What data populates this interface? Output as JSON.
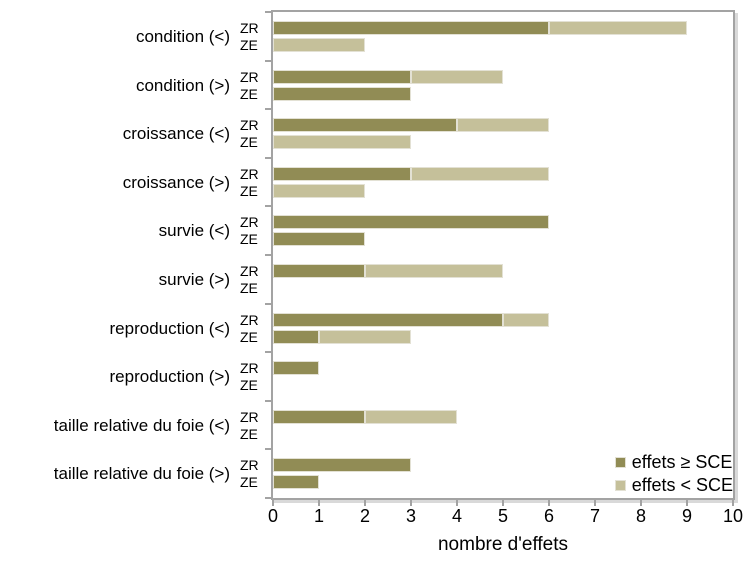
{
  "figure": {
    "background": "#ffffff",
    "plot_border_color": "#a3a3a3"
  },
  "chart_data": {
    "type": "bar",
    "orientation": "horizontal",
    "stacked": true,
    "title": "",
    "xlabel": "nombre d'effets",
    "ylabel": "",
    "xlim": [
      0,
      10
    ],
    "xticks": [
      0,
      1,
      2,
      3,
      4,
      5,
      6,
      7,
      8,
      9,
      10
    ],
    "grid": false,
    "legend_position": "inside-bottom-right",
    "series": [
      {
        "name": "effets ≥ SCE",
        "color": "#918c55"
      },
      {
        "name": "effets < SCE",
        "color": "#c5c09a"
      }
    ],
    "row_labels": [
      "ZR",
      "ZE"
    ],
    "groups": [
      {
        "category": "condition (<)",
        "rows": [
          {
            "label": "ZR",
            "values": [
              6,
              3
            ]
          },
          {
            "label": "ZE",
            "values": [
              0,
              2
            ]
          }
        ]
      },
      {
        "category": "condition (>)",
        "rows": [
          {
            "label": "ZR",
            "values": [
              3,
              2
            ]
          },
          {
            "label": "ZE",
            "values": [
              3,
              0
            ]
          }
        ]
      },
      {
        "category": "croissance (<)",
        "rows": [
          {
            "label": "ZR",
            "values": [
              4,
              2
            ]
          },
          {
            "label": "ZE",
            "values": [
              0,
              3
            ]
          }
        ]
      },
      {
        "category": "croissance (>)",
        "rows": [
          {
            "label": "ZR",
            "values": [
              3,
              3
            ]
          },
          {
            "label": "ZE",
            "values": [
              0,
              2
            ]
          }
        ]
      },
      {
        "category": "survie (<)",
        "rows": [
          {
            "label": "ZR",
            "values": [
              6,
              0
            ]
          },
          {
            "label": "ZE",
            "values": [
              2,
              0
            ]
          }
        ]
      },
      {
        "category": "survie (>)",
        "rows": [
          {
            "label": "ZR",
            "values": [
              2,
              3
            ]
          },
          {
            "label": "ZE",
            "values": [
              0,
              0
            ]
          }
        ]
      },
      {
        "category": "reproduction (<)",
        "rows": [
          {
            "label": "ZR",
            "values": [
              5,
              1
            ]
          },
          {
            "label": "ZE",
            "values": [
              1,
              2
            ]
          }
        ]
      },
      {
        "category": "reproduction (>)",
        "rows": [
          {
            "label": "ZR",
            "values": [
              1,
              0
            ]
          },
          {
            "label": "ZE",
            "values": [
              0,
              0
            ]
          }
        ]
      },
      {
        "category": "taille relative du foie (<)",
        "rows": [
          {
            "label": "ZR",
            "values": [
              2,
              2
            ]
          },
          {
            "label": "ZE",
            "values": [
              0,
              0
            ]
          }
        ]
      },
      {
        "category": "taille relative du foie (>)",
        "rows": [
          {
            "label": "ZR",
            "values": [
              3,
              0
            ]
          },
          {
            "label": "ZE",
            "values": [
              1,
              0
            ]
          }
        ]
      }
    ]
  }
}
